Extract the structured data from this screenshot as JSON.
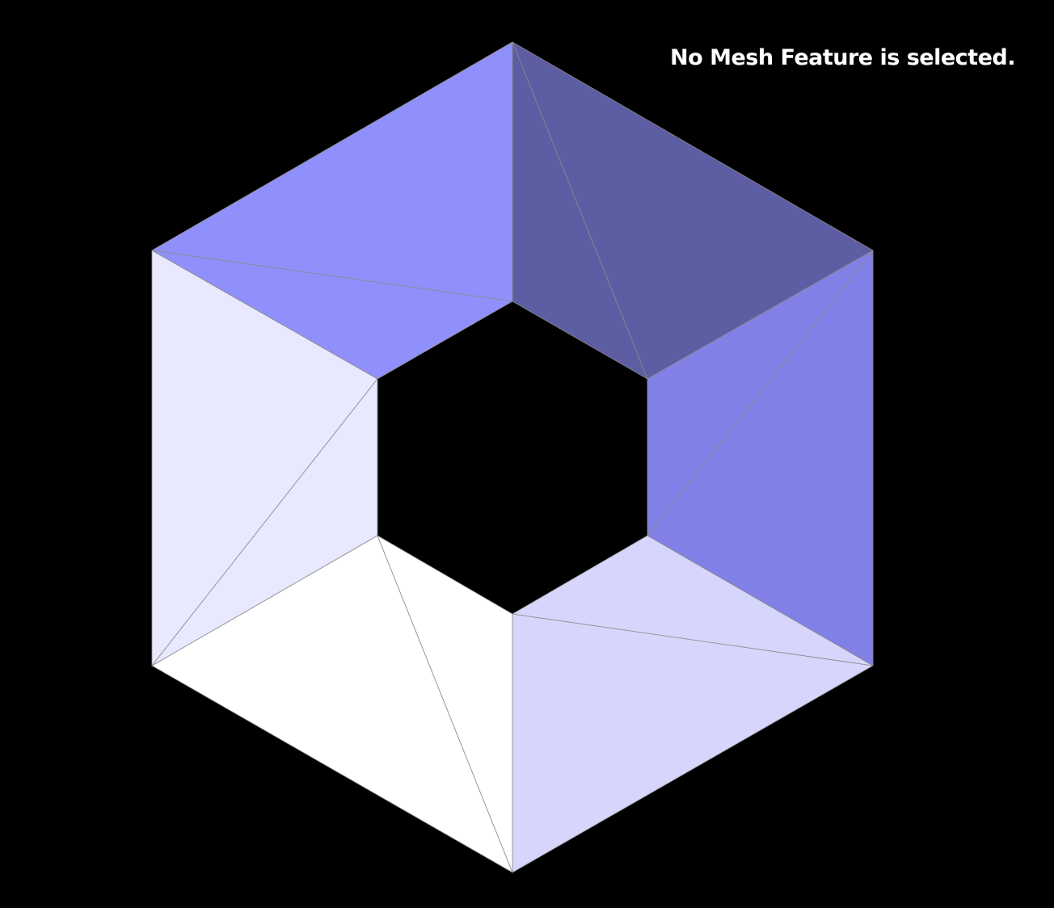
{
  "status": {
    "message": "No Mesh Feature is selected."
  },
  "mesh": {
    "background_color": "#000000",
    "edge_color": "#8a8a8a",
    "faces": [
      {
        "name": "top-left-face",
        "color": "#9090fc"
      },
      {
        "name": "top-right-face",
        "color": "#5d5da4"
      },
      {
        "name": "right-face",
        "color": "#8080e6"
      },
      {
        "name": "bottom-right-face",
        "color": "#d6d6fc"
      },
      {
        "name": "bottom-left-face",
        "color": "#ffffff"
      },
      {
        "name": "left-face",
        "color": "#e8e8fe"
      }
    ]
  }
}
